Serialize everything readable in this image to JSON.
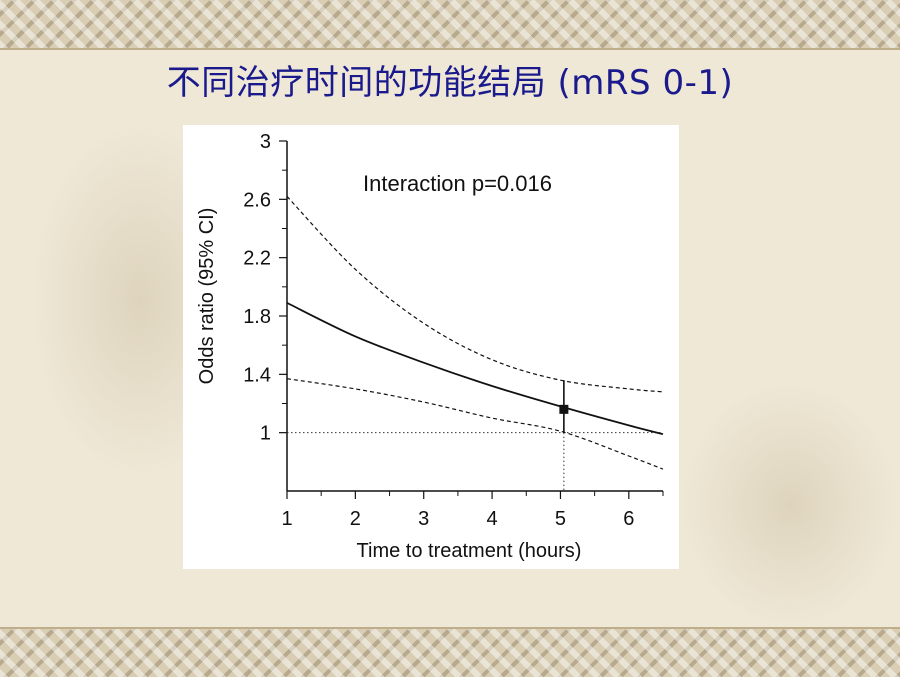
{
  "slide": {
    "title": "不同治疗时间的功能结局 (mRS 0-1)"
  },
  "chart_data": {
    "type": "line",
    "title": "",
    "xlabel": "Time to treatment (hours)",
    "ylabel": "Odds ratio (95% CI)",
    "xlim": [
      1,
      6.5
    ],
    "ylim": [
      0.6,
      3
    ],
    "x_ticks": [
      1,
      2,
      3,
      4,
      5,
      6
    ],
    "x_tick_labels": [
      "1",
      "2",
      "3",
      "4",
      "5",
      "6"
    ],
    "y_ticks": [
      1,
      1.4,
      1.8,
      2.2,
      2.6,
      3
    ],
    "y_tick_labels": [
      "1",
      "1.4",
      "1.8",
      "2.2",
      "2.6",
      "3"
    ],
    "annotation": "Interaction p=0.016",
    "reference_line_y": 1,
    "reference_line_x": 5.05,
    "series": [
      {
        "style": "solid",
        "x": [
          1,
          2,
          3,
          4,
          5,
          6,
          6.5
        ],
        "y": [
          1.89,
          1.66,
          1.48,
          1.32,
          1.18,
          1.05,
          0.99
        ]
      },
      {
        "style": "dashed",
        "x": [
          1,
          2,
          3,
          4,
          5,
          6,
          6.5
        ],
        "y": [
          2.62,
          2.12,
          1.75,
          1.5,
          1.36,
          1.3,
          1.28
        ]
      },
      {
        "style": "dashed",
        "x": [
          1,
          2,
          3,
          4,
          5,
          6,
          6.5
        ],
        "y": [
          1.37,
          1.3,
          1.21,
          1.1,
          1.01,
          0.84,
          0.75
        ]
      }
    ],
    "point_estimate": {
      "x": 5.05,
      "y": 1.16,
      "ci_low": 1.0,
      "ci_high": 1.36
    }
  }
}
